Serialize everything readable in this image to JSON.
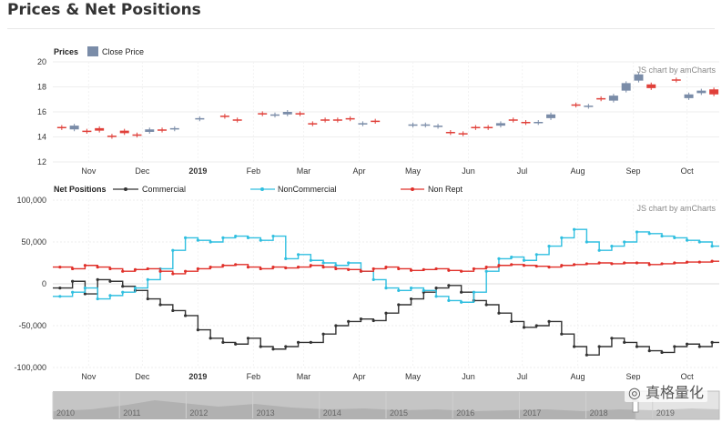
{
  "page": {
    "title": "Prices & Net Positions",
    "watermark": "真格量化"
  },
  "chart_data": [
    {
      "type": "candlestick",
      "panel_label": "Prices",
      "legend": [
        "Close Price"
      ],
      "credit": "JS chart by amCharts",
      "ylim": [
        12,
        20
      ],
      "yticks": [
        12,
        14,
        16,
        18,
        20
      ],
      "x_labels": [
        "Nov",
        "Dec",
        "2019",
        "Feb",
        "Mar",
        "Apr",
        "May",
        "Jun",
        "Jul",
        "Aug",
        "Sep",
        "Oct"
      ],
      "grid": true,
      "colors": {
        "up": "#7a8ca8",
        "down": "#e0403a"
      },
      "candles": [
        {
          "x": "2018-10-17",
          "open": 14.8,
          "close": 14.7
        },
        {
          "x": "2018-10-24",
          "open": 14.6,
          "close": 14.9
        },
        {
          "x": "2018-10-31",
          "open": 14.5,
          "close": 14.4
        },
        {
          "x": "2018-11-07",
          "open": 14.7,
          "close": 14.5
        },
        {
          "x": "2018-11-14",
          "open": 14.1,
          "close": 14.0
        },
        {
          "x": "2018-11-21",
          "open": 14.5,
          "close": 14.3
        },
        {
          "x": "2018-11-28",
          "open": 14.2,
          "close": 14.1
        },
        {
          "x": "2018-12-05",
          "open": 14.4,
          "close": 14.6
        },
        {
          "x": "2018-12-12",
          "open": 14.6,
          "close": 14.5
        },
        {
          "x": "2018-12-19",
          "open": 14.6,
          "close": 14.7
        },
        {
          "x": "2019-01-02",
          "open": 15.4,
          "close": 15.5
        },
        {
          "x": "2019-01-16",
          "open": 15.7,
          "close": 15.6
        },
        {
          "x": "2019-01-23",
          "open": 15.4,
          "close": 15.3
        },
        {
          "x": "2019-02-06",
          "open": 15.9,
          "close": 15.8
        },
        {
          "x": "2019-02-13",
          "open": 15.7,
          "close": 15.8
        },
        {
          "x": "2019-02-20",
          "open": 15.8,
          "close": 16.0
        },
        {
          "x": "2019-02-27",
          "open": 15.9,
          "close": 15.8
        },
        {
          "x": "2019-03-06",
          "open": 15.1,
          "close": 15.0
        },
        {
          "x": "2019-03-13",
          "open": 15.4,
          "close": 15.3
        },
        {
          "x": "2019-03-20",
          "open": 15.4,
          "close": 15.3
        },
        {
          "x": "2019-03-27",
          "open": 15.5,
          "close": 15.4
        },
        {
          "x": "2019-04-03",
          "open": 15.0,
          "close": 15.1
        },
        {
          "x": "2019-04-10",
          "open": 15.3,
          "close": 15.2
        },
        {
          "x": "2019-05-01",
          "open": 14.9,
          "close": 15.0
        },
        {
          "x": "2019-05-08",
          "open": 14.9,
          "close": 15.0
        },
        {
          "x": "2019-05-15",
          "open": 14.8,
          "close": 14.9
        },
        {
          "x": "2019-05-22",
          "open": 14.4,
          "close": 14.3
        },
        {
          "x": "2019-05-29",
          "open": 14.3,
          "close": 14.2
        },
        {
          "x": "2019-06-05",
          "open": 14.8,
          "close": 14.7
        },
        {
          "x": "2019-06-12",
          "open": 14.8,
          "close": 14.7
        },
        {
          "x": "2019-06-19",
          "open": 14.9,
          "close": 15.1
        },
        {
          "x": "2019-06-26",
          "open": 15.4,
          "close": 15.3
        },
        {
          "x": "2019-07-03",
          "open": 15.2,
          "close": 15.1
        },
        {
          "x": "2019-07-10",
          "open": 15.1,
          "close": 15.2
        },
        {
          "x": "2019-07-17",
          "open": 15.5,
          "close": 15.8
        },
        {
          "x": "2019-07-31",
          "open": 16.6,
          "close": 16.5
        },
        {
          "x": "2019-08-07",
          "open": 16.4,
          "close": 16.5
        },
        {
          "x": "2019-08-14",
          "open": 17.1,
          "close": 17.0
        },
        {
          "x": "2019-08-21",
          "open": 16.9,
          "close": 17.3
        },
        {
          "x": "2019-08-28",
          "open": 17.7,
          "close": 18.3
        },
        {
          "x": "2019-09-04",
          "open": 18.5,
          "close": 19.0
        },
        {
          "x": "2019-09-11",
          "open": 18.2,
          "close": 17.9
        },
        {
          "x": "2019-09-25",
          "open": 18.6,
          "close": 18.5
        },
        {
          "x": "2019-10-02",
          "open": 17.1,
          "close": 17.4
        },
        {
          "x": "2019-10-09",
          "open": 17.5,
          "close": 17.7
        },
        {
          "x": "2019-10-16",
          "open": 17.8,
          "close": 17.4
        }
      ]
    },
    {
      "type": "line",
      "step": true,
      "panel_label": "Net Positions",
      "credit": "JS chart by amCharts",
      "ylim": [
        -100000,
        100000
      ],
      "yticks": [
        -100000,
        -50000,
        0,
        50000,
        100000
      ],
      "ytick_labels": [
        "-100,000",
        "-50,000",
        "0",
        "50,000",
        "100,000"
      ],
      "x_labels": [
        "Nov",
        "Dec",
        "2019",
        "Feb",
        "Mar",
        "Apr",
        "May",
        "Jun",
        "Jul",
        "Aug",
        "Sep",
        "Oct"
      ],
      "grid": true,
      "x_dates": [
        "2018-10-16",
        "2018-10-23",
        "2018-10-30",
        "2018-11-06",
        "2018-11-13",
        "2018-11-20",
        "2018-11-27",
        "2018-12-04",
        "2018-12-11",
        "2018-12-18",
        "2018-12-25",
        "2019-01-01",
        "2019-01-08",
        "2019-01-15",
        "2019-01-22",
        "2019-01-29",
        "2019-02-05",
        "2019-02-12",
        "2019-02-19",
        "2019-02-26",
        "2019-03-05",
        "2019-03-12",
        "2019-03-19",
        "2019-03-26",
        "2019-04-02",
        "2019-04-09",
        "2019-04-16",
        "2019-04-23",
        "2019-04-30",
        "2019-05-07",
        "2019-05-14",
        "2019-05-21",
        "2019-05-28",
        "2019-06-04",
        "2019-06-11",
        "2019-06-18",
        "2019-06-25",
        "2019-07-02",
        "2019-07-09",
        "2019-07-16",
        "2019-07-23",
        "2019-07-30",
        "2019-08-06",
        "2019-08-13",
        "2019-08-20",
        "2019-08-27",
        "2019-09-03",
        "2019-09-10",
        "2019-09-17",
        "2019-09-24",
        "2019-10-01",
        "2019-10-08",
        "2019-10-15"
      ],
      "series": [
        {
          "name": "Commercial",
          "color": "#333333",
          "values": [
            -5000,
            3000,
            -12000,
            5000,
            3000,
            -3000,
            -8000,
            -18000,
            -25000,
            -32000,
            -38000,
            -55000,
            -65000,
            -70000,
            -72000,
            -65000,
            -75000,
            -78000,
            -75000,
            -70000,
            -70000,
            -60000,
            -50000,
            -45000,
            -42000,
            -44000,
            -35000,
            -25000,
            -18000,
            -10000,
            -5000,
            -2000,
            -10000,
            -20000,
            -25000,
            -35000,
            -45000,
            -52000,
            -50000,
            -45000,
            -60000,
            -75000,
            -85000,
            -75000,
            -65000,
            -70000,
            -75000,
            -80000,
            -82000,
            -75000,
            -72000,
            -75000,
            -70000
          ]
        },
        {
          "name": "NonCommercial",
          "color": "#30bfe0",
          "values": [
            -15000,
            -10000,
            -5000,
            -18000,
            -14000,
            -10000,
            -5000,
            5000,
            18000,
            40000,
            55000,
            52000,
            50000,
            55000,
            57000,
            55000,
            52000,
            57000,
            30000,
            35000,
            28000,
            25000,
            22000,
            25000,
            15000,
            5000,
            -5000,
            -8000,
            -5000,
            -8000,
            -15000,
            -20000,
            -22000,
            -10000,
            15000,
            30000,
            32000,
            28000,
            35000,
            45000,
            55000,
            65000,
            50000,
            40000,
            45000,
            50000,
            62000,
            60000,
            57000,
            55000,
            52000,
            50000,
            45000
          ]
        },
        {
          "name": "Non Rept",
          "color": "#e0302a",
          "values": [
            20000,
            18000,
            22000,
            20000,
            18000,
            15000,
            17000,
            18000,
            15000,
            12000,
            15000,
            18000,
            20000,
            22000,
            23000,
            20000,
            18000,
            20000,
            19000,
            20000,
            22000,
            20000,
            18000,
            17000,
            15000,
            18000,
            20000,
            18000,
            16000,
            17000,
            18000,
            16000,
            15000,
            18000,
            20000,
            22000,
            23000,
            22000,
            21000,
            20000,
            22000,
            23000,
            24000,
            25000,
            24000,
            25000,
            25000,
            23000,
            24000,
            25000,
            26000,
            26000,
            27000
          ]
        }
      ]
    }
  ],
  "navigator": {
    "years": [
      "2010",
      "2011",
      "2012",
      "2013",
      "2014",
      "2015",
      "2016",
      "2017",
      "2018",
      "2019"
    ]
  }
}
